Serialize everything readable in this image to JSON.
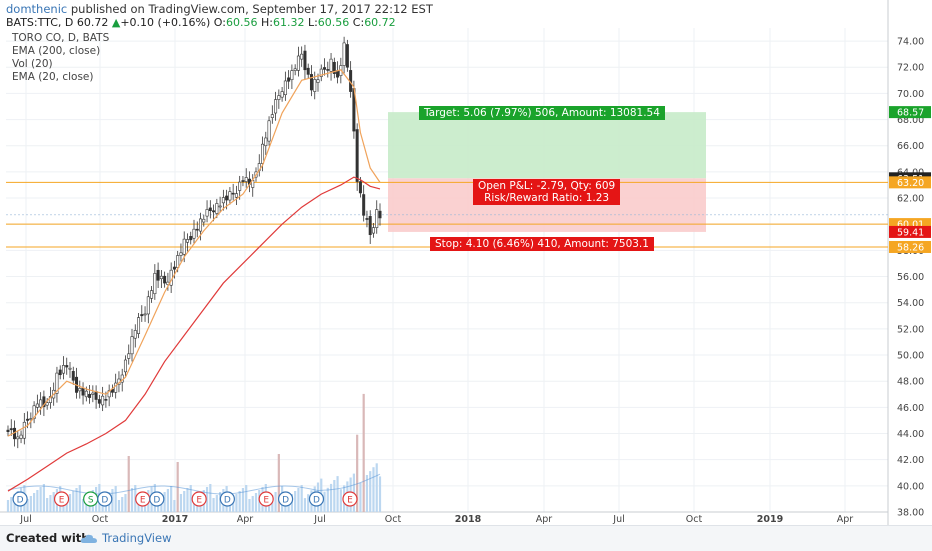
{
  "header": {
    "author": "domthenic",
    "published": " published on TradingView.com, September 17, 2017 22:12 EST",
    "symbol": "BATS:TTC, D",
    "last": "60.72",
    "up_arrow": "▲",
    "change": "+0.10 (+0.16%)",
    "o_label": "O:",
    "o_value": "60.56",
    "h_label": "H:",
    "h_value": "61.32",
    "l_label": "L:",
    "l_value": "60.56",
    "c_label": "C:",
    "c_value": "60.72"
  },
  "legend": {
    "line1": "TORO CO, D, BATS",
    "line2": "EMA (200, close)",
    "line3": "Vol (20)",
    "line4": "EMA (20, close)"
  },
  "trade": {
    "target_label": "Target: 5.06 (7.97%) 506, Amount: 13081.54",
    "open_pl_label": "Open P&L: -2.79, Qty: 609",
    "rr_label": "Risk/Reward Ratio: 1.23",
    "stop_label": "Stop: 4.10 (6.46%) 410, Amount: 7503.1"
  },
  "footer": {
    "created": "Created with",
    "brand": "TradingView"
  },
  "colors": {
    "bull": "#1a9e3f",
    "bear": "#e41515",
    "ema200": "#e03a3a",
    "ema20": "#f0a35b",
    "target_fill": "#c7ebc9",
    "stop_fill": "#f9cccc",
    "hline": "#f5a623",
    "vol": "#bcd7f0"
  },
  "chart_data": {
    "type": "candlestick",
    "title": "TORO CO, D, BATS",
    "ylim": [
      38,
      75
    ],
    "y_ticks": [
      "38.00",
      "40.00",
      "42.00",
      "44.00",
      "46.00",
      "48.00",
      "50.00",
      "52.00",
      "54.00",
      "56.00",
      "58.00",
      "60.00",
      "62.00",
      "64.00",
      "66.00",
      "68.00",
      "70.00",
      "72.00",
      "74.00"
    ],
    "x_ticks": [
      "Jul",
      "Oct",
      "2017",
      "Apr",
      "Jul",
      "Oct",
      "2018",
      "Apr",
      "Jul",
      "Oct",
      "2019",
      "Apr"
    ],
    "price_badges": [
      {
        "value": "68.57",
        "color": "#1aa32b"
      },
      {
        "value": "63.51",
        "color": "#222222"
      },
      {
        "value": "63.20",
        "color": "#f5a623"
      },
      {
        "value": "60.01",
        "color": "#f5a623"
      },
      {
        "value": "59.41",
        "color": "#e41515"
      },
      {
        "value": "58.26",
        "color": "#f5a623"
      }
    ],
    "price_path": [
      [
        0,
        44.5
      ],
      [
        3,
        43.5
      ],
      [
        6,
        45
      ],
      [
        9,
        46.5
      ],
      [
        12,
        46
      ],
      [
        15,
        48.5
      ],
      [
        18,
        49.2
      ],
      [
        21,
        47.5
      ],
      [
        24,
        47
      ],
      [
        27,
        46.6
      ],
      [
        30,
        46.8
      ],
      [
        33,
        47.5
      ],
      [
        36,
        49.5
      ],
      [
        39,
        52
      ],
      [
        42,
        53.5
      ],
      [
        45,
        56
      ],
      [
        48,
        55.5
      ],
      [
        51,
        56.8
      ],
      [
        54,
        58.5
      ],
      [
        57,
        59.5
      ],
      [
        60,
        60.5
      ],
      [
        63,
        61.3
      ],
      [
        66,
        61.8
      ],
      [
        69,
        62.3
      ],
      [
        72,
        63.5
      ],
      [
        75,
        63
      ],
      [
        78,
        66
      ],
      [
        81,
        68.5
      ],
      [
        84,
        70.5
      ],
      [
        87,
        71.5
      ],
      [
        90,
        73
      ],
      [
        93,
        70.5
      ],
      [
        96,
        71.5
      ],
      [
        99,
        72.5
      ],
      [
        101,
        71
      ],
      [
        103,
        73.5
      ],
      [
        105,
        70.5
      ],
      [
        107,
        63.5
      ],
      [
        109,
        60.8
      ],
      [
        111,
        59.2
      ],
      [
        113,
        61
      ],
      [
        114,
        60.72
      ]
    ],
    "ema200_path": [
      [
        0,
        39.6
      ],
      [
        6,
        40.5
      ],
      [
        12,
        41.5
      ],
      [
        18,
        42.5
      ],
      [
        24,
        43.2
      ],
      [
        30,
        44
      ],
      [
        36,
        45
      ],
      [
        42,
        47
      ],
      [
        48,
        49.5
      ],
      [
        54,
        51.5
      ],
      [
        60,
        53.5
      ],
      [
        66,
        55.5
      ],
      [
        72,
        57
      ],
      [
        78,
        58.5
      ],
      [
        84,
        60
      ],
      [
        90,
        61.3
      ],
      [
        96,
        62.3
      ],
      [
        102,
        63
      ],
      [
        106,
        63.6
      ],
      [
        108,
        63.4
      ],
      [
        111,
        62.9
      ],
      [
        114,
        62.7
      ]
    ],
    "ema20_path": [
      [
        0,
        43.8
      ],
      [
        6,
        44.6
      ],
      [
        12,
        46.5
      ],
      [
        18,
        48
      ],
      [
        24,
        47.4
      ],
      [
        30,
        47
      ],
      [
        36,
        48.3
      ],
      [
        42,
        51.5
      ],
      [
        48,
        54.8
      ],
      [
        54,
        57.5
      ],
      [
        60,
        59.5
      ],
      [
        66,
        61.2
      ],
      [
        72,
        62.3
      ],
      [
        78,
        64.5
      ],
      [
        84,
        68.5
      ],
      [
        90,
        71
      ],
      [
        96,
        71.4
      ],
      [
        102,
        71.8
      ],
      [
        106,
        70.5
      ],
      [
        108,
        67
      ],
      [
        111,
        64.3
      ],
      [
        114,
        63.2
      ]
    ],
    "events": [
      {
        "label": "D",
        "pos": 0.016
      },
      {
        "label": "E",
        "pos": 0.063
      },
      {
        "label": "S",
        "pos": 0.096
      },
      {
        "label": "D",
        "pos": 0.112
      },
      {
        "label": "E",
        "pos": 0.155
      },
      {
        "label": "D",
        "pos": 0.171
      },
      {
        "label": "E",
        "pos": 0.219
      },
      {
        "label": "D",
        "pos": 0.251
      },
      {
        "label": "E",
        "pos": 0.295
      },
      {
        "label": "D",
        "pos": 0.317
      },
      {
        "label": "D",
        "pos": 0.352
      },
      {
        "label": "E",
        "pos": 0.39
      }
    ],
    "position": {
      "entry": 63.51,
      "target": 68.57,
      "stop": 59.41
    },
    "grid": true
  }
}
